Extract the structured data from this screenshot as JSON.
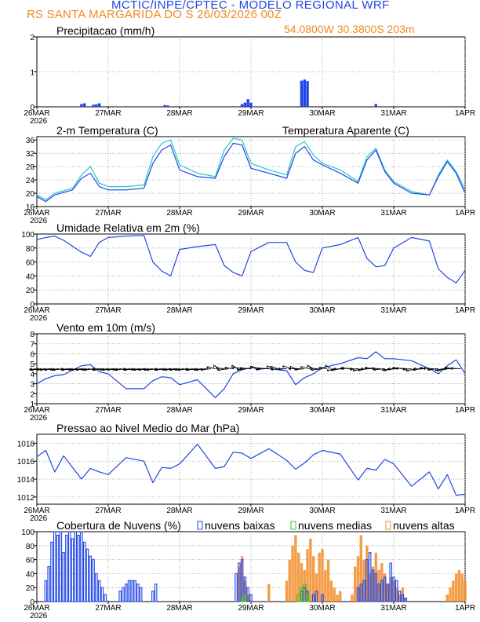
{
  "header": {
    "title": "MCTIC/INPE/CPTEC - MODELO REGIONAL WRF",
    "location_run": "RS SANTA MARGARIDA DO S   26/03/2026 00Z",
    "coords": "54.0800W 30.3800S 203m"
  },
  "colors": {
    "blue": "#1f45e6",
    "cyan": "#25c8c8",
    "green": "#2ecc2e",
    "orange": "#f28c28",
    "grid": "#9a9a9a"
  },
  "x_axis": {
    "labels": [
      "26MAR",
      "27MAR",
      "28MAR",
      "29MAR",
      "30MAR",
      "31MAR",
      "1APR"
    ],
    "year_label": "2026",
    "hours_per_day": 24,
    "total_hours": 144
  },
  "chart_data": [
    {
      "type": "bar",
      "title": "Precipitacao (mm/h)",
      "ylabel": "mm/h",
      "ylim": [
        0,
        2
      ],
      "yticks": [
        0,
        1,
        2
      ],
      "x_unit": "hours since 26MAR 00Z",
      "series": [
        {
          "name": "precipitacao",
          "color": "#1f45e6",
          "x": [
            15,
            16,
            19,
            20,
            21,
            43,
            44,
            69,
            70,
            71,
            72,
            89,
            90,
            91,
            114
          ],
          "values": [
            0.08,
            0.1,
            0.06,
            0.07,
            0.1,
            0.05,
            0.04,
            0.08,
            0.12,
            0.22,
            0.12,
            0.75,
            0.78,
            0.74,
            0.08
          ]
        }
      ]
    },
    {
      "type": "line",
      "title": "2-m Temperatura (C)",
      "ylim": [
        16,
        37
      ],
      "yticks": [
        16,
        20,
        24,
        28,
        32,
        36
      ],
      "legend_label": "Temperatura Aparente (C)",
      "x_unit": "hours since 26MAR 00Z",
      "series": [
        {
          "name": "Temperatura (C)",
          "color": "#1f45e6",
          "x": [
            0,
            3,
            6,
            12,
            15,
            18,
            21,
            24,
            30,
            36,
            39,
            42,
            45,
            48,
            54,
            60,
            63,
            66,
            69,
            72,
            78,
            84,
            87,
            90,
            93,
            96,
            102,
            108,
            111,
            114,
            117,
            120,
            126,
            132,
            135,
            138,
            141,
            144
          ],
          "values": [
            19,
            17.5,
            19.5,
            21,
            24.5,
            26,
            22,
            21,
            21,
            21.5,
            29,
            33,
            34.5,
            27,
            25,
            24.5,
            31,
            35,
            34.5,
            27.5,
            26,
            24.5,
            32,
            34,
            30,
            28.5,
            26,
            23,
            30,
            33,
            26.5,
            23,
            20,
            19.5,
            25,
            29.5,
            26,
            20
          ]
        },
        {
          "name": "Temperatura Aparente (C)",
          "color": "#25c8c8",
          "x": [
            0,
            3,
            6,
            12,
            15,
            18,
            21,
            24,
            30,
            36,
            39,
            42,
            45,
            48,
            54,
            60,
            63,
            66,
            69,
            72,
            78,
            84,
            87,
            90,
            93,
            96,
            102,
            108,
            111,
            114,
            117,
            120,
            126,
            132,
            135,
            138,
            141,
            144
          ],
          "values": [
            19.5,
            18,
            20,
            21.5,
            25.5,
            28,
            23,
            22,
            22,
            22.5,
            31,
            35,
            36,
            28.5,
            26,
            25,
            33,
            36.5,
            36,
            29,
            27,
            25.5,
            34,
            35.5,
            31.5,
            29,
            27,
            23.5,
            31,
            33.5,
            27,
            23.5,
            20.5,
            19.5,
            25.5,
            30,
            26.5,
            21
          ]
        }
      ]
    },
    {
      "type": "line",
      "title": "Umidade Relativa em 2m (%)",
      "ylim": [
        0,
        100
      ],
      "yticks": [
        0,
        20,
        40,
        60,
        80,
        100
      ],
      "x_unit": "hours since 26MAR 00Z",
      "series": [
        {
          "name": "Umidade Relativa",
          "color": "#1f45e6",
          "x": [
            0,
            3,
            6,
            9,
            15,
            18,
            21,
            24,
            30,
            36,
            39,
            42,
            45,
            48,
            54,
            60,
            63,
            66,
            69,
            72,
            78,
            84,
            87,
            90,
            93,
            96,
            102,
            108,
            111,
            114,
            117,
            120,
            126,
            132,
            135,
            138,
            141,
            144
          ],
          "values": [
            92,
            95,
            97,
            91,
            74,
            68,
            88,
            95,
            97,
            98,
            60,
            47,
            40,
            78,
            82,
            85,
            55,
            45,
            40,
            75,
            88,
            88,
            60,
            48,
            45,
            80,
            85,
            95,
            65,
            53,
            55,
            80,
            95,
            90,
            50,
            38,
            30,
            48
          ]
        }
      ]
    },
    {
      "type": "line",
      "title": "Vento em 10m (m/s)",
      "ylim": [
        1,
        8
      ],
      "yticks": [
        1,
        2,
        3,
        4,
        5,
        6,
        7,
        8
      ],
      "x_unit": "hours since 26MAR 00Z",
      "notes": "wind direction arrows drawn along y=4.5",
      "series": [
        {
          "name": "Velocidade do vento",
          "color": "#1f45e6",
          "x": [
            0,
            3,
            6,
            9,
            15,
            18,
            21,
            24,
            30,
            36,
            39,
            42,
            45,
            48,
            54,
            60,
            63,
            66,
            69,
            72,
            78,
            84,
            87,
            90,
            93,
            96,
            102,
            108,
            111,
            114,
            117,
            120,
            126,
            132,
            135,
            138,
            141,
            144
          ],
          "values": [
            3,
            3.5,
            3.8,
            3.9,
            4.8,
            4.9,
            4.2,
            4.0,
            2.5,
            2.5,
            3.3,
            3.7,
            3.6,
            2.9,
            3.4,
            1.6,
            2.5,
            4.0,
            4.4,
            4.6,
            4.5,
            4.3,
            2.9,
            3.6,
            4.0,
            4.6,
            5.0,
            5.6,
            5.5,
            6.2,
            5.5,
            5.5,
            5.3,
            4.5,
            4.0,
            4.8,
            5.4,
            4.0
          ]
        }
      ]
    },
    {
      "type": "line",
      "title": "Pressao ao Nivel Medio do Mar (hPa)",
      "ylim": [
        1011.2,
        1019
      ],
      "yticks": [
        1012,
        1014,
        1016,
        1018
      ],
      "x_unit": "hours since 26MAR 00Z",
      "series": [
        {
          "name": "Pressao",
          "color": "#1f45e6",
          "x": [
            0,
            3,
            6,
            9,
            15,
            18,
            21,
            24,
            30,
            36,
            39,
            42,
            45,
            48,
            54,
            60,
            63,
            66,
            69,
            72,
            78,
            84,
            87,
            90,
            93,
            96,
            102,
            108,
            111,
            114,
            117,
            120,
            126,
            132,
            135,
            138,
            141,
            144
          ],
          "values": [
            1016.5,
            1017.2,
            1014.8,
            1016.6,
            1014.0,
            1015.2,
            1014.8,
            1014.5,
            1016.4,
            1016.0,
            1013.6,
            1015.3,
            1015.2,
            1015.7,
            1017.9,
            1015.2,
            1015.4,
            1017.0,
            1016.9,
            1016.3,
            1017.4,
            1016.1,
            1015.1,
            1015.8,
            1016.7,
            1017.2,
            1016.8,
            1013.9,
            1015.2,
            1015.0,
            1016.2,
            1015.7,
            1013.2,
            1014.8,
            1012.9,
            1014.5,
            1012.2,
            1012.3
          ]
        }
      ]
    },
    {
      "type": "bar",
      "title": "Cobertura de Nuvens (%)",
      "ylim": [
        0,
        100
      ],
      "yticks": [
        0,
        20,
        40,
        60,
        80,
        100
      ],
      "x_unit": "hours since 26MAR 00Z",
      "series": [
        {
          "name": "nuvens baixas",
          "color": "#1f45e6",
          "x": [
            3,
            4,
            5,
            6,
            7,
            8,
            9,
            10,
            11,
            12,
            13,
            14,
            15,
            16,
            17,
            18,
            19,
            20,
            21,
            22,
            23,
            28,
            29,
            30,
            31,
            32,
            33,
            34,
            35,
            39,
            40,
            67,
            68,
            69,
            70,
            71,
            72,
            89,
            90,
            91,
            93,
            94,
            96,
            108,
            109,
            110,
            111,
            112,
            113,
            114,
            115,
            116,
            117,
            118,
            119,
            120,
            121,
            122,
            123,
            124
          ],
          "values": [
            30,
            50,
            85,
            100,
            95,
            100,
            70,
            95,
            100,
            90,
            100,
            95,
            100,
            85,
            75,
            65,
            60,
            40,
            30,
            20,
            10,
            15,
            20,
            25,
            30,
            30,
            30,
            25,
            20,
            15,
            25,
            40,
            55,
            60,
            35,
            20,
            10,
            15,
            20,
            15,
            10,
            15,
            10,
            20,
            25,
            30,
            60,
            70,
            45,
            40,
            25,
            30,
            35,
            25,
            55,
            35,
            30,
            15,
            10,
            5
          ]
        },
        {
          "name": "nuvens medias",
          "color": "#2ecc2e",
          "x": [
            69,
            70,
            88,
            89,
            90,
            91
          ],
          "values": [
            5,
            10,
            10,
            20,
            25,
            10
          ]
        },
        {
          "name": "nuvens altas",
          "color": "#f28c28",
          "x": [
            68,
            69,
            70,
            71,
            78,
            84,
            85,
            86,
            87,
            88,
            89,
            90,
            91,
            92,
            93,
            94,
            95,
            96,
            97,
            98,
            99,
            100,
            101,
            102,
            106,
            107,
            108,
            109,
            110,
            111,
            112,
            113,
            114,
            115,
            116,
            117,
            118,
            119,
            120,
            121,
            122,
            123,
            124,
            138,
            139,
            140,
            141,
            142,
            143,
            144
          ],
          "values": [
            50,
            65,
            30,
            10,
            25,
            30,
            60,
            80,
            95,
            70,
            55,
            45,
            75,
            90,
            65,
            40,
            70,
            75,
            45,
            60,
            30,
            20,
            10,
            15,
            10,
            50,
            65,
            95,
            60,
            80,
            40,
            50,
            70,
            45,
            55,
            40,
            25,
            35,
            30,
            20,
            10,
            20,
            5,
            10,
            20,
            30,
            40,
            45,
            40,
            30
          ]
        }
      ]
    }
  ],
  "cloud_legend": {
    "low": "nuvens baixas",
    "mid": "nuvens medias",
    "high": "nuvens altas"
  }
}
